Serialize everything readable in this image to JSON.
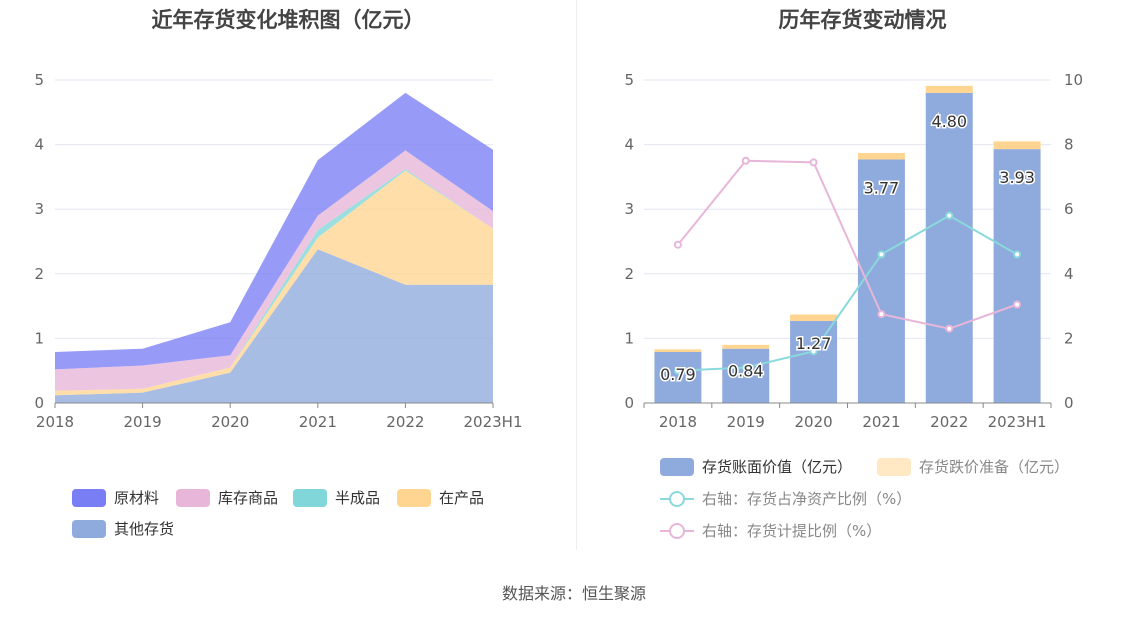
{
  "footer": {
    "source": "数据来源：恒生聚源"
  },
  "chart_data": [
    {
      "type": "area",
      "stacked": true,
      "title": "近年存货变化堆积图（亿元）",
      "categories": [
        "2018",
        "2019",
        "2020",
        "2021",
        "2022",
        "2023H1"
      ],
      "ylim": [
        0,
        5
      ],
      "yticks": [
        "0",
        "1",
        "2",
        "3",
        "4",
        "5"
      ],
      "grid": true,
      "legend_position": "bottom",
      "series": [
        {
          "name": "其他存货",
          "color": "#8faadc",
          "values": [
            0.12,
            0.16,
            0.47,
            2.38,
            1.83,
            1.83
          ]
        },
        {
          "name": "在产品",
          "color": "#ffd591",
          "values": [
            0.07,
            0.06,
            0.08,
            0.18,
            1.77,
            0.87
          ]
        },
        {
          "name": "半成品",
          "color": "#80d6d9",
          "values": [
            0.0,
            0.0,
            0.0,
            0.12,
            0.02,
            0.0
          ]
        },
        {
          "name": "库存商品",
          "color": "#e7b6d9",
          "values": [
            0.33,
            0.36,
            0.19,
            0.22,
            0.29,
            0.27
          ]
        },
        {
          "name": "原材料",
          "color": "#7a7ef5",
          "values": [
            0.27,
            0.26,
            0.51,
            0.86,
            0.89,
            0.95
          ]
        }
      ]
    },
    {
      "type": "bar",
      "title": "历年存货变动情况",
      "categories": [
        "2018",
        "2019",
        "2020",
        "2021",
        "2022",
        "2023H1"
      ],
      "ylim": [
        0,
        5
      ],
      "yticks": [
        "0",
        "1",
        "2",
        "3",
        "4",
        "5"
      ],
      "y2lim": [
        0,
        10
      ],
      "y2ticks": [
        "0",
        "2",
        "4",
        "6",
        "8",
        "10"
      ],
      "grid": true,
      "legend_position": "bottom",
      "series": [
        {
          "name": "存货账面价值（亿元）",
          "kind": "bar",
          "color": "#8faadc",
          "values": [
            0.79,
            0.84,
            1.27,
            3.77,
            4.8,
            3.93
          ],
          "labels": [
            "0.79",
            "0.84",
            "1.27",
            "3.77",
            "4.80",
            "3.93"
          ]
        },
        {
          "name": "存货跌价准备（亿元）",
          "kind": "bar",
          "color": "#ffd591",
          "values": [
            0.04,
            0.06,
            0.1,
            0.1,
            0.11,
            0.12
          ]
        },
        {
          "name": "右轴：存货占净资产比例（%）",
          "kind": "line",
          "axis": "right",
          "color": "#8ad9dc",
          "values": [
            1.0,
            1.1,
            1.6,
            4.6,
            5.8,
            4.6
          ]
        },
        {
          "name": "右轴：存货计提比例（%）",
          "kind": "line",
          "axis": "right",
          "color": "#e7b6d9",
          "values": [
            4.9,
            7.5,
            7.45,
            2.75,
            2.3,
            3.05
          ]
        }
      ]
    }
  ]
}
